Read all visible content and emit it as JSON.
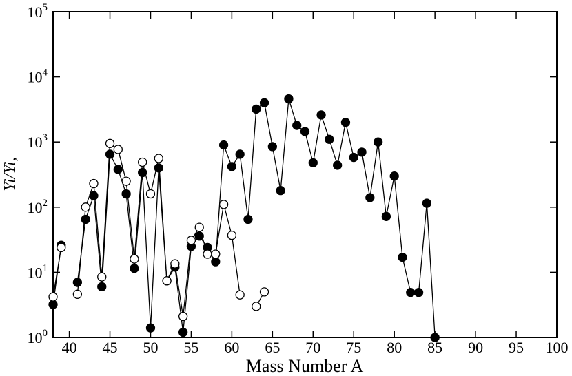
{
  "chart_data": {
    "type": "line",
    "x_label": "Mass Number A",
    "y_label": "Yi/Yi,",
    "log_y": true,
    "xlim": [
      38,
      100
    ],
    "ylim": [
      1,
      100000
    ],
    "xticks": [
      40,
      45,
      50,
      55,
      60,
      65,
      70,
      75,
      80,
      85,
      90,
      95,
      100
    ],
    "yticks": [
      {
        "value": 1,
        "label": "10^0"
      },
      {
        "value": 10,
        "label": "10^1"
      },
      {
        "value": 100,
        "label": "10^2"
      },
      {
        "value": 1000,
        "label": "10^3"
      },
      {
        "value": 10000,
        "label": "10^4"
      },
      {
        "value": 100000,
        "label": "10^5"
      }
    ],
    "x": [
      38,
      39,
      40,
      41,
      42,
      43,
      44,
      45,
      46,
      47,
      48,
      49,
      50,
      51,
      52,
      53,
      54,
      55,
      56,
      57,
      58,
      59,
      60,
      61,
      62,
      63,
      64,
      65,
      66,
      67,
      68,
      69,
      70,
      71,
      72,
      73,
      74,
      75,
      76,
      77,
      78,
      79,
      80,
      81,
      82,
      83,
      84,
      85
    ],
    "series": [
      {
        "marker": "filled",
        "color": "#000000",
        "values": [
          3.2,
          26,
          null,
          7,
          65,
          150,
          6,
          650,
          380,
          160,
          11.5,
          340,
          1.4,
          400,
          7.4,
          12,
          1.2,
          25,
          36,
          24,
          14.5,
          900,
          420,
          650,
          65,
          3200,
          4000,
          850,
          180,
          4600,
          1800,
          1450,
          480,
          2600,
          1100,
          440,
          2000,
          580,
          700,
          140,
          1000,
          72,
          300,
          17,
          4.9,
          4.9,
          115,
          1.0
        ]
      },
      {
        "marker": "open",
        "color": "#000000",
        "values": [
          4.2,
          24,
          null,
          4.6,
          100,
          230,
          8.5,
          950,
          770,
          250,
          16,
          490,
          160,
          560,
          7.4,
          13.5,
          2.1,
          31,
          49,
          19,
          19,
          110,
          37,
          4.5,
          null,
          3.0,
          5.0,
          null,
          null,
          null,
          null,
          null,
          null,
          null,
          null,
          null,
          null,
          null,
          null,
          null,
          null,
          null,
          null,
          null,
          null,
          null,
          null,
          null
        ]
      }
    ]
  }
}
